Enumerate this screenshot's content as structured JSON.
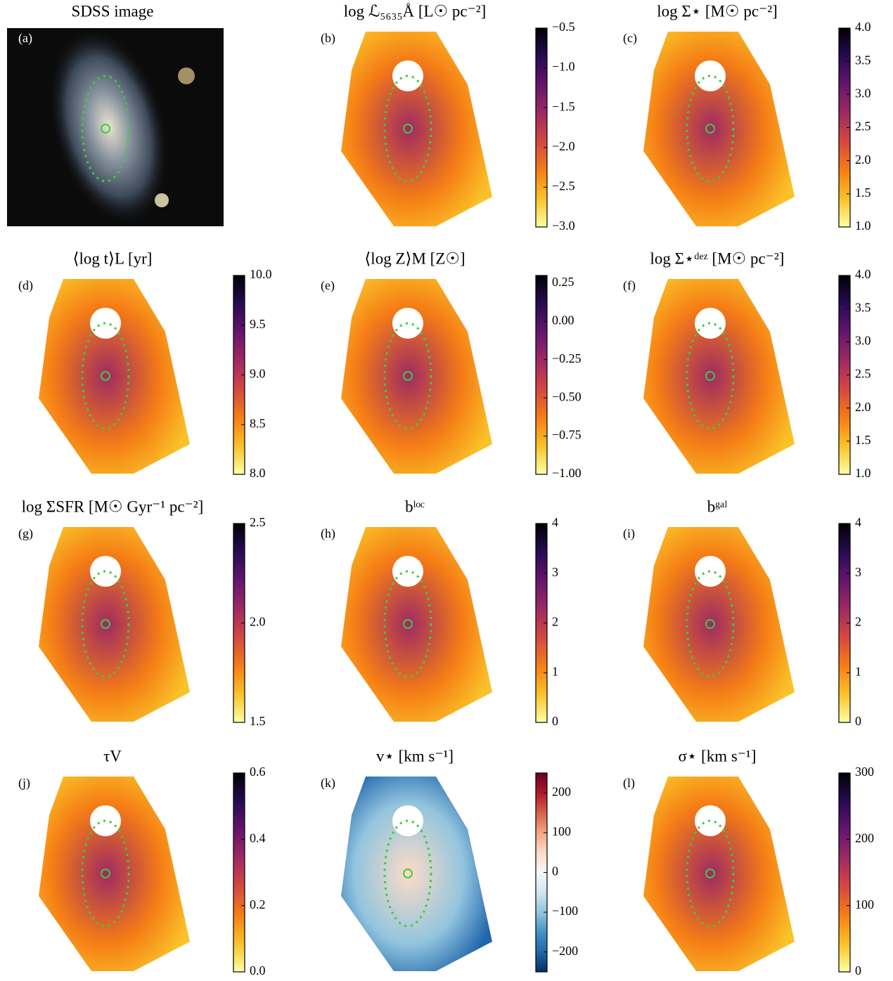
{
  "panels": [
    {
      "label": "(a)",
      "title": "SDSS image"
    },
    {
      "label": "(b)",
      "title": "log ℒ₅₆₃₅Å [L☉ pc⁻²]",
      "colorbar": {
        "lim": [
          -3,
          -0.5
        ],
        "ticks": [
          {
            "value": -3,
            "label": "−3.0"
          },
          {
            "value": -2.5,
            "label": "−2.5"
          },
          {
            "value": -2,
            "label": "−2.0"
          },
          {
            "value": -1.5,
            "label": "−1.5"
          },
          {
            "value": -1,
            "label": "−1.0"
          },
          {
            "value": -0.5,
            "label": "−0.5"
          }
        ],
        "colors": [
          "#fcffa4",
          "#fac228",
          "#f57d15",
          "#d44842",
          "#9f2a63",
          "#65156e",
          "#280b54",
          "#000004"
        ]
      }
    },
    {
      "label": "(c)",
      "title": "log Σ⋆ [M☉ pc⁻²]",
      "colorbar": {
        "lim": [
          1,
          4
        ],
        "ticks": [
          {
            "value": 1,
            "label": "1.0"
          },
          1.5,
          {
            "value": 2,
            "label": "2.0"
          },
          2.5,
          {
            "value": 3,
            "label": "3.0"
          },
          3.5,
          {
            "value": 4,
            "label": "4.0"
          }
        ],
        "colors": [
          "#fcffa4",
          "#fac228",
          "#f57d15",
          "#d44842",
          "#9f2a63",
          "#65156e",
          "#280b54",
          "#000004"
        ]
      }
    },
    {
      "label": "(d)",
      "title": "⟨log t⟩L [yr]",
      "colorbar": {
        "lim": [
          8,
          10
        ],
        "ticks": [
          {
            "value": 8,
            "label": "8.0"
          },
          8.5,
          {
            "value": 9,
            "label": "9.0"
          },
          9.5,
          {
            "value": 10,
            "label": "10.0"
          }
        ],
        "colors": [
          "#fcffa4",
          "#fac228",
          "#f57d15",
          "#d44842",
          "#9f2a63",
          "#65156e",
          "#280b54",
          "#000004"
        ]
      }
    },
    {
      "label": "(e)",
      "title": "⟨log Z⟩M [Z☉]",
      "colorbar": {
        "lim": [
          -1,
          0.3
        ],
        "ticks": [
          {
            "value": -1,
            "label": "−1.00"
          },
          {
            "value": -0.75,
            "label": "−0.75"
          },
          {
            "value": -0.5,
            "label": "−0.50"
          },
          {
            "value": -0.25,
            "label": "−0.25"
          },
          {
            "value": 0,
            "label": "0.00"
          },
          0.25
        ],
        "colors": [
          "#fcffa4",
          "#fac228",
          "#f57d15",
          "#d44842",
          "#9f2a63",
          "#65156e",
          "#280b54",
          "#000004"
        ]
      }
    },
    {
      "label": "(f)",
      "title": "log Σ⋆ᵈᵉᶻ [M☉ pc⁻²]",
      "colorbar": {
        "lim": [
          1,
          4
        ],
        "ticks": [
          {
            "value": 1,
            "label": "1.0"
          },
          1.5,
          {
            "value": 2,
            "label": "2.0"
          },
          2.5,
          {
            "value": 3,
            "label": "3.0"
          },
          3.5,
          {
            "value": 4,
            "label": "4.0"
          }
        ],
        "colors": [
          "#fcffa4",
          "#fac228",
          "#f57d15",
          "#d44842",
          "#9f2a63",
          "#65156e",
          "#280b54",
          "#000004"
        ]
      }
    },
    {
      "label": "(g)",
      "title": "log ΣSFR [M☉ Gyr⁻¹ pc⁻²]",
      "colorbar": {
        "lim": [
          1.5,
          2.5
        ],
        "ticks": [
          1.5,
          {
            "value": 2,
            "label": "2.0"
          },
          2.5
        ],
        "colors": [
          "#fcffa4",
          "#fac228",
          "#f57d15",
          "#d44842",
          "#9f2a63",
          "#65156e",
          "#280b54",
          "#000004"
        ]
      }
    },
    {
      "label": "(h)",
      "title": "bˡᵒᶜ",
      "colorbar": {
        "lim": [
          0,
          4
        ],
        "ticks": [
          0,
          1,
          2,
          3,
          4
        ],
        "colors": [
          "#fcffa4",
          "#fac228",
          "#f57d15",
          "#d44842",
          "#9f2a63",
          "#65156e",
          "#280b54",
          "#000004"
        ]
      }
    },
    {
      "label": "(i)",
      "title": "bᵍᵃˡ",
      "colorbar": {
        "lim": [
          0,
          4
        ],
        "ticks": [
          0,
          1,
          2,
          3,
          4
        ],
        "colors": [
          "#fcffa4",
          "#fac228",
          "#f57d15",
          "#d44842",
          "#9f2a63",
          "#65156e",
          "#280b54",
          "#000004"
        ]
      }
    },
    {
      "label": "(j)",
      "title": "τV",
      "colorbar": {
        "lim": [
          0,
          0.6
        ],
        "ticks": [
          {
            "value": 0,
            "label": "0.0"
          },
          0.2,
          0.4,
          0.6
        ],
        "colors": [
          "#fcffa4",
          "#fac228",
          "#f57d15",
          "#d44842",
          "#9f2a63",
          "#65156e",
          "#280b54",
          "#000004"
        ]
      }
    },
    {
      "label": "(k)",
      "title": "v⋆ [km s⁻¹]",
      "colorbar": {
        "lim": [
          -250,
          250
        ],
        "ticks": [
          {
            "value": -200,
            "label": "−200"
          },
          {
            "value": -100,
            "label": "−100"
          },
          0,
          100,
          200
        ],
        "colors": [
          "#053061",
          "#2166ac",
          "#4393c3",
          "#92c5de",
          "#d1e5f0",
          "#f7f7f7",
          "#fddbc7",
          "#f4a582",
          "#d6604d",
          "#b2182b",
          "#67001f"
        ]
      }
    },
    {
      "label": "(l)",
      "title": "σ⋆ [km s⁻¹]",
      "colorbar": {
        "lim": [
          0,
          300
        ],
        "ticks": [
          0,
          100,
          200,
          300
        ],
        "colors": [
          "#fcffa4",
          "#fac228",
          "#f57d15",
          "#d44842",
          "#9f2a63",
          "#65156e",
          "#280b54",
          "#000004"
        ]
      }
    }
  ]
}
